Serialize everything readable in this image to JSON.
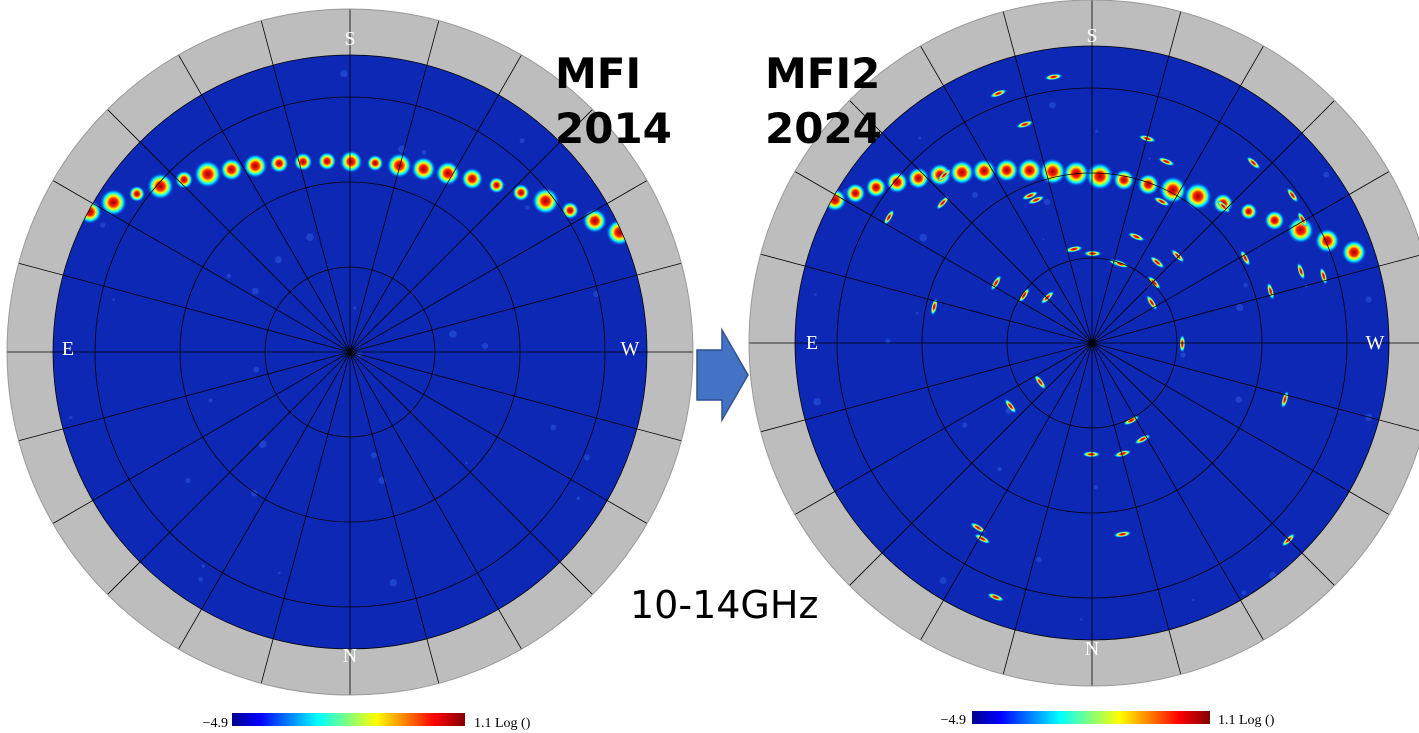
{
  "panels": [
    {
      "label": "MFI",
      "year": "2014",
      "compass": {
        "top": "S",
        "left": "E",
        "right": "W",
        "bottom": "N"
      },
      "colorbar": {
        "min": "−4.9",
        "max": "1.1 Log ()"
      }
    },
    {
      "label": "MFI2",
      "year": "2024",
      "compass": {
        "top": "S",
        "left": "E",
        "right": "W",
        "bottom": "N"
      },
      "colorbar": {
        "min": "−4.9",
        "max": "1.1 Log ()"
      }
    }
  ],
  "frequency": "10-14GHz"
}
